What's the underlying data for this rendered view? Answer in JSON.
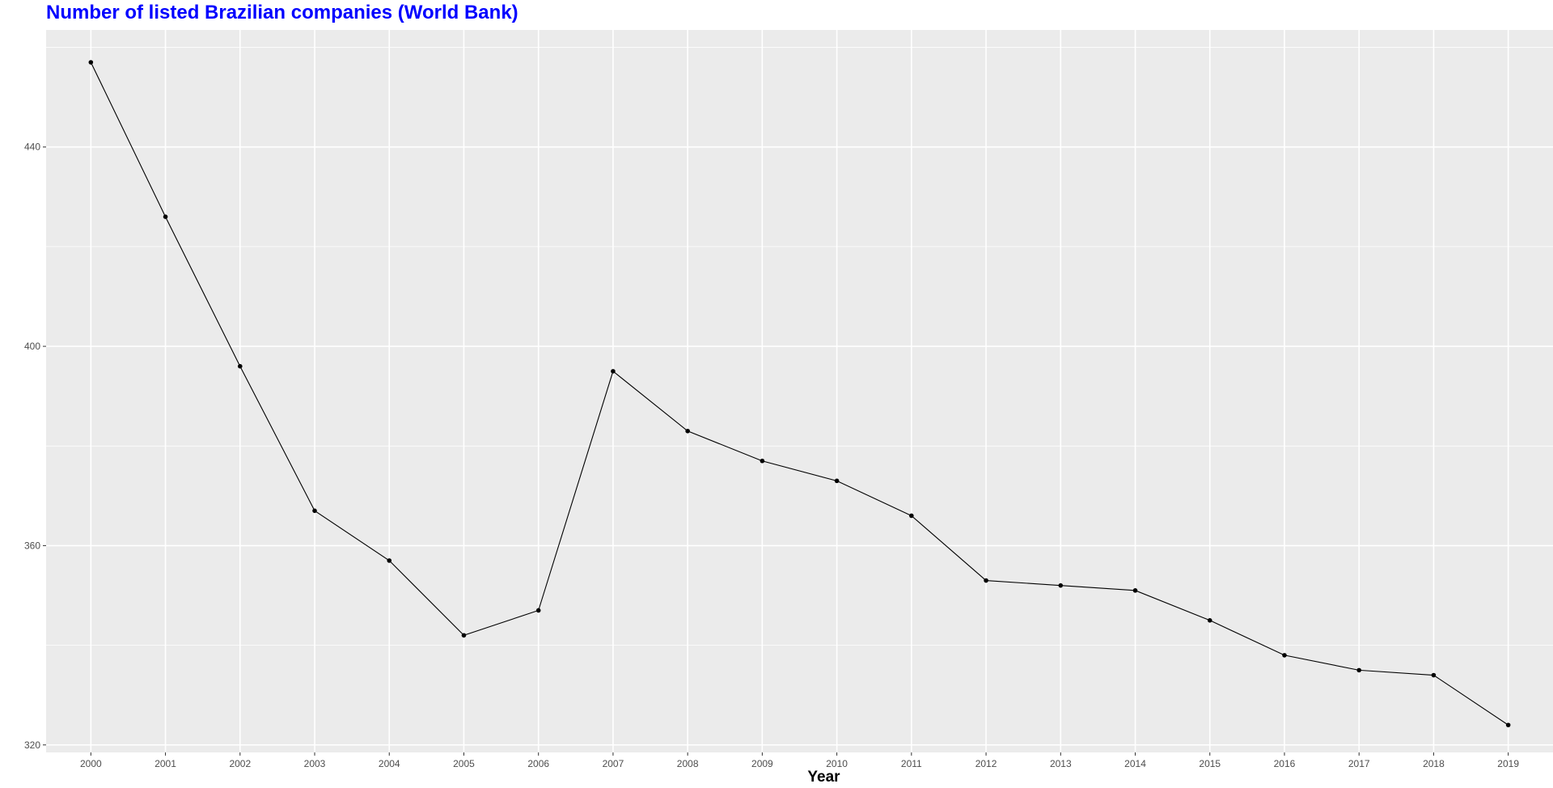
{
  "chart_data": {
    "type": "line",
    "title": "Number of listed Brazilian companies (World Bank)",
    "xlabel": "Year",
    "ylabel": "",
    "x": [
      2000,
      2001,
      2002,
      2003,
      2004,
      2005,
      2006,
      2007,
      2008,
      2009,
      2010,
      2011,
      2012,
      2013,
      2014,
      2015,
      2016,
      2017,
      2018,
      2019
    ],
    "series": [
      {
        "values": [
          457,
          426,
          396,
          367,
          357,
          342,
          347,
          395,
          383,
          377,
          373,
          366,
          353,
          352,
          351,
          345,
          338,
          335,
          334,
          324
        ]
      }
    ],
    "ylim": [
      318.5,
      463.5
    ],
    "y_ticks": [
      320,
      360,
      400,
      440
    ],
    "grid": true,
    "legend": "none",
    "colors": {
      "title": "#0000ff",
      "panel": "#ebebeb",
      "grid": "#ffffff",
      "line": "#000000",
      "tick_text": "#4d4d4d"
    }
  }
}
